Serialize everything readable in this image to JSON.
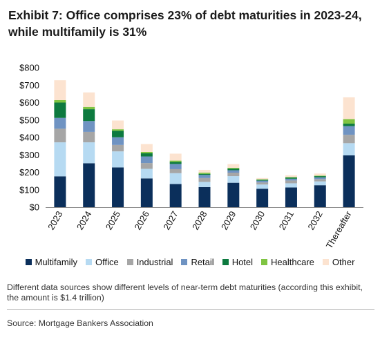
{
  "chart_data": {
    "type": "bar",
    "stacked": true,
    "title": "Exhibit 7: Office comprises 23% of debt maturities in 2023-24, while multifamily is 31%",
    "xlabel": "",
    "ylabel": "",
    "categories": [
      "2023",
      "2024",
      "2025",
      "2026",
      "2027",
      "2028",
      "2029",
      "2030",
      "2031",
      "2032",
      "Thereafter"
    ],
    "ylim": [
      0,
      800
    ],
    "yticks": [
      0,
      100,
      200,
      300,
      400,
      500,
      600,
      700,
      800
    ],
    "ytick_labels": [
      "$0",
      "$100",
      "$200",
      "$300",
      "$400",
      "$500",
      "$600",
      "$700",
      "$800"
    ],
    "grid": false,
    "legend_position": "bottom",
    "series": [
      {
        "name": "Multifamily",
        "color": "#0b2f5b",
        "values": [
          177,
          252,
          228,
          165,
          133,
          115,
          140,
          106,
          113,
          126,
          297
        ]
      },
      {
        "name": "Office",
        "color": "#b6daf2",
        "values": [
          195,
          120,
          92,
          55,
          62,
          30,
          38,
          24,
          24,
          22,
          70
        ]
      },
      {
        "name": "Industrial",
        "color": "#a6a6a6",
        "values": [
          78,
          60,
          37,
          33,
          23,
          22,
          20,
          12,
          16,
          13,
          48
        ]
      },
      {
        "name": "Retail",
        "color": "#6f93c2",
        "values": [
          62,
          62,
          44,
          38,
          30,
          18,
          14,
          10,
          10,
          10,
          50
        ]
      },
      {
        "name": "Hotel",
        "color": "#0d7a3f",
        "values": [
          88,
          68,
          37,
          18,
          12,
          6,
          9,
          5,
          7,
          7,
          14
        ]
      },
      {
        "name": "Healthcare",
        "color": "#7fc442",
        "values": [
          14,
          13,
          9,
          8,
          7,
          7,
          5,
          3,
          3,
          3,
          26
        ]
      },
      {
        "name": "Other",
        "color": "#fce3d0",
        "values": [
          114,
          83,
          50,
          45,
          40,
          16,
          21,
          7,
          10,
          12,
          125
        ]
      }
    ]
  },
  "note": "Different data sources show different levels of near-term debt maturities (according this exhibit, the amount is $1.4 trillion)",
  "source": "Source: Mortgage Bankers Association",
  "colors": {
    "axis": "#8c8c8c",
    "rule": "#b9b9b9"
  }
}
